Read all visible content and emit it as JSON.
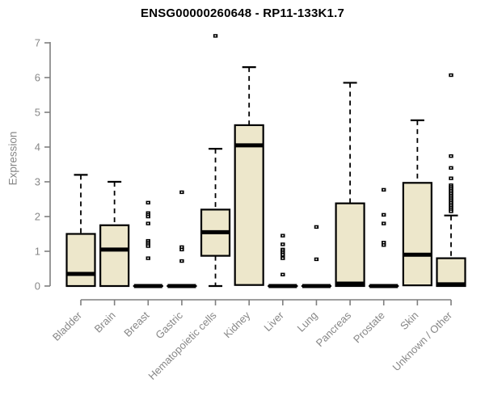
{
  "chart_data": {
    "type": "boxplot",
    "title": "ENSG00000260648 - RP11-133K1.7",
    "ylabel": "Expression",
    "xlabel": "",
    "ylim": [
      0,
      7
    ],
    "yticks": [
      0,
      1,
      2,
      3,
      4,
      5,
      6,
      7
    ],
    "grid": false,
    "legend": null,
    "categories": [
      "Bladder",
      "Brain",
      "Breast",
      "Gastric",
      "Hematopoietic cells",
      "Kidney",
      "Liver",
      "Lung",
      "Pancreas",
      "Prostate",
      "Skin",
      "Unknown / Other"
    ],
    "series": [
      {
        "label": "Bladder",
        "whisker_low": 0,
        "q1": 0,
        "median": 0.35,
        "q3": 1.5,
        "whisker_high": 3.2,
        "outliers": []
      },
      {
        "label": "Brain",
        "whisker_low": 0,
        "q1": 0,
        "median": 1.05,
        "q3": 1.75,
        "whisker_high": 3.0,
        "outliers": []
      },
      {
        "label": "Breast",
        "whisker_low": 0,
        "q1": 0,
        "median": 0,
        "q3": 0,
        "whisker_high": 0,
        "outliers": [
          2.4,
          2.1,
          2.05,
          2.0,
          1.8,
          1.3,
          1.25,
          1.2,
          1.15,
          0.8
        ]
      },
      {
        "label": "Gastric",
        "whisker_low": 0,
        "q1": 0,
        "median": 0,
        "q3": 0,
        "whisker_high": 0,
        "outliers": [
          2.7,
          1.12,
          1.05,
          0.72
        ]
      },
      {
        "label": "Hematopoietic cells",
        "whisker_low": 0,
        "q1": 0.87,
        "median": 1.55,
        "q3": 2.2,
        "whisker_high": 3.95,
        "outliers": [
          7.2
        ]
      },
      {
        "label": "Kidney",
        "whisker_low": 0.03,
        "q1": 0.03,
        "median": 4.05,
        "q3": 4.63,
        "whisker_high": 6.3,
        "outliers": []
      },
      {
        "label": "Liver",
        "whisker_low": 0,
        "q1": 0,
        "median": 0,
        "q3": 0,
        "whisker_high": 0,
        "outliers": [
          1.45,
          1.2,
          1.05,
          1.0,
          0.95,
          0.9,
          0.8,
          0.33
        ]
      },
      {
        "label": "Lung",
        "whisker_low": 0,
        "q1": 0,
        "median": 0,
        "q3": 0,
        "whisker_high": 0,
        "outliers": [
          1.7,
          0.77
        ]
      },
      {
        "label": "Pancreas",
        "whisker_low": 0,
        "q1": 0,
        "median": 0.07,
        "q3": 2.38,
        "whisker_high": 5.85,
        "outliers": []
      },
      {
        "label": "Prostate",
        "whisker_low": 0,
        "q1": 0,
        "median": 0,
        "q3": 0,
        "whisker_high": 0,
        "outliers": [
          2.77,
          2.05,
          1.8,
          1.25,
          1.18
        ]
      },
      {
        "label": "Skin",
        "whisker_low": 0.02,
        "q1": 0.02,
        "median": 0.9,
        "q3": 2.97,
        "whisker_high": 4.77,
        "outliers": []
      },
      {
        "label": "Unknown / Other",
        "whisker_low": 0,
        "q1": 0,
        "median": 0.05,
        "q3": 0.8,
        "whisker_high": 2.03,
        "outliers": [
          6.07,
          3.74,
          3.4,
          3.1,
          2.9,
          2.85,
          2.8,
          2.75,
          2.7,
          2.65,
          2.6,
          2.55,
          2.5,
          2.45,
          2.4,
          2.35,
          2.3,
          2.25,
          2.2,
          2.15
        ]
      }
    ],
    "colors": {
      "box_fill": "#ede7cb",
      "box_stroke": "#000000",
      "median": "#000000",
      "whisker": "#000000",
      "outlier": "#000000",
      "axis": "#7f7f7f",
      "tick_label": "#878787",
      "title": "#000000",
      "background": "#ffffff"
    }
  }
}
